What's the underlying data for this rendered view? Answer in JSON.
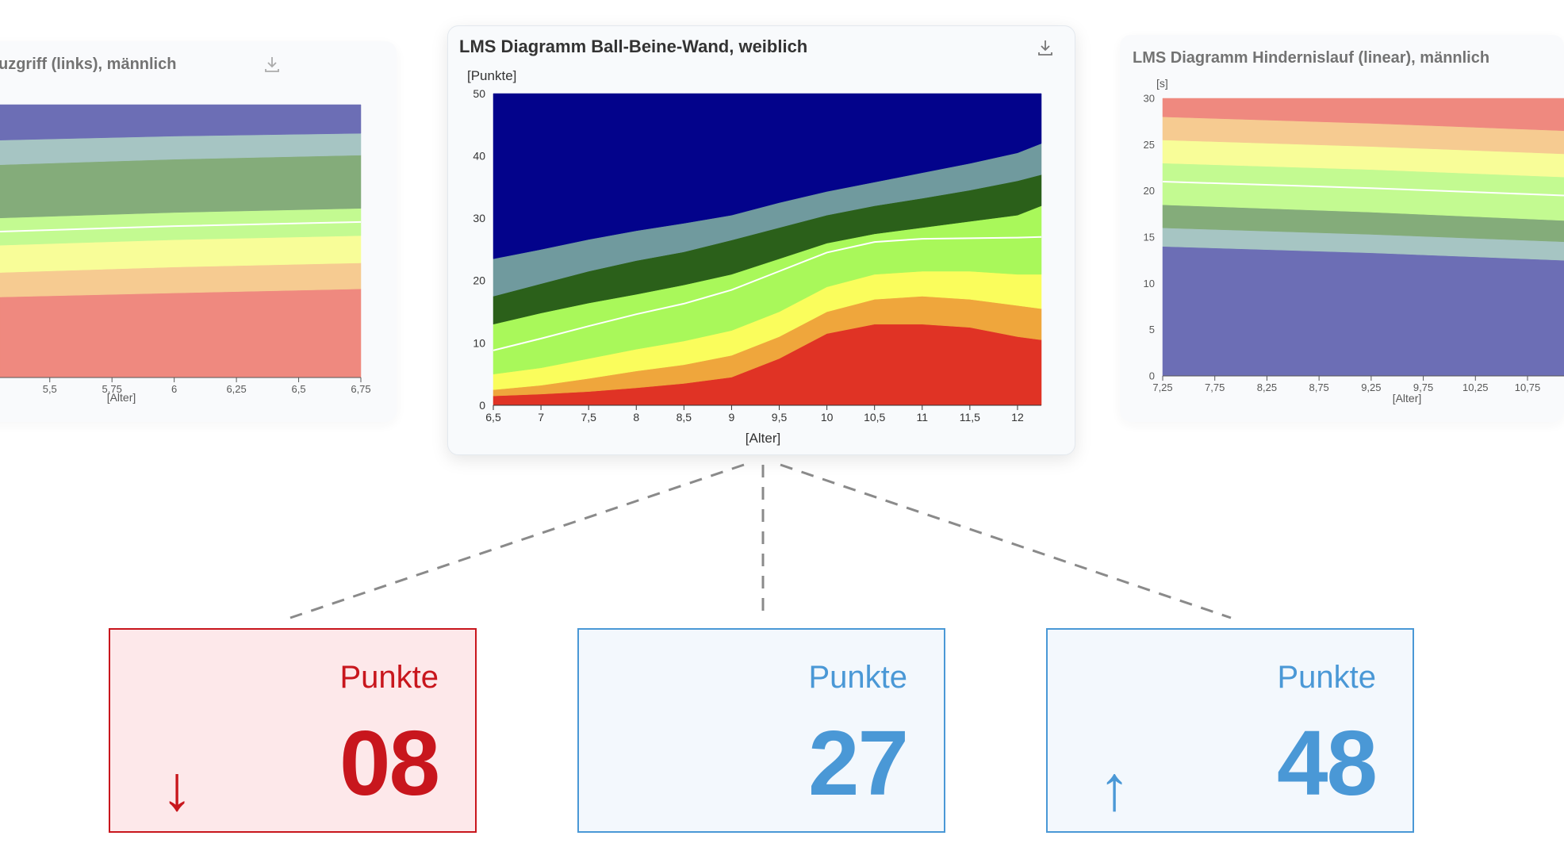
{
  "charts": {
    "left": {
      "title": "uzgriff (links), männlich"
    },
    "center": {
      "title": "LMS Diagramm Ball-Beine-Wand, weiblich"
    },
    "right": {
      "title": "LMS Diagramm Hindernislauf (linear), männlich"
    }
  },
  "kpis": [
    {
      "label": "Punkte",
      "value": "08",
      "arrow": "↓",
      "state": "below"
    },
    {
      "label": "Punkte",
      "value": "27",
      "arrow": "",
      "state": "normal"
    },
    {
      "label": "Punkte",
      "value": "48",
      "arrow": "↑",
      "state": "above"
    }
  ],
  "chart_data": [
    {
      "type": "area",
      "title": "uzgriff (links), männlich",
      "xlabel": "[Alter]",
      "ylabel": "",
      "xlim": [
        5.3,
        6.75
      ],
      "ylim": [
        0,
        1
      ],
      "x_ticks": [
        "5,5",
        "5,75",
        "6",
        "6,25",
        "6,5",
        "6,75"
      ],
      "x_tick_values": [
        5.5,
        5.75,
        6,
        6.25,
        6.5,
        6.75
      ],
      "x": [
        5.3,
        6.0,
        6.75
      ],
      "bands": [
        {
          "color": "#ec7063",
          "lower": [
            0,
            0,
            0
          ],
          "upper": [
            0.295,
            0.31,
            0.325
          ]
        },
        {
          "color": "#f5c07a",
          "lower": [
            0.295,
            0.31,
            0.325
          ],
          "upper": [
            0.385,
            0.405,
            0.42
          ]
        },
        {
          "color": "#f7fd82",
          "lower": [
            0.385,
            0.405,
            0.42
          ],
          "upper": [
            0.485,
            0.505,
            0.52
          ]
        },
        {
          "color": "#b6f97a",
          "lower": [
            0.485,
            0.505,
            0.52
          ],
          "upper": [
            0.585,
            0.605,
            0.62
          ]
        },
        {
          "color": "#6a9a5e",
          "lower": [
            0.585,
            0.605,
            0.62
          ],
          "upper": [
            0.78,
            0.8,
            0.815
          ]
        },
        {
          "color": "#93b9b6",
          "lower": [
            0.78,
            0.8,
            0.815
          ],
          "upper": [
            0.87,
            0.885,
            0.895
          ]
        },
        {
          "color": "#4d4fa6",
          "lower": [
            0.87,
            0.885,
            0.895
          ],
          "upper": [
            1,
            1,
            1
          ]
        }
      ],
      "median": [
        0.535,
        0.555,
        0.57
      ]
    },
    {
      "type": "area",
      "title": "LMS Diagramm Ball-Beine-Wand, weiblich",
      "xlabel": "[Alter]",
      "ylabel": "[Punkte]",
      "xlim": [
        6.5,
        12.25
      ],
      "ylim": [
        0,
        50
      ],
      "x_ticks": [
        "6,5",
        "7",
        "7,5",
        "8",
        "8,5",
        "9",
        "9,5",
        "10",
        "10,5",
        "11",
        "11,5",
        "12"
      ],
      "x_tick_values": [
        6.5,
        7,
        7.5,
        8,
        8.5,
        9,
        9.5,
        10,
        10.5,
        11,
        11.5,
        12
      ],
      "y_ticks": [
        0,
        10,
        20,
        30,
        40,
        50
      ],
      "x": [
        6.5,
        7,
        7.5,
        8,
        8.5,
        9,
        9.5,
        10,
        10.5,
        11,
        11.5,
        12,
        12.25
      ],
      "bands": [
        {
          "color": "#e03325",
          "lower": [
            0,
            0,
            0,
            0,
            0,
            0,
            0,
            0,
            0,
            0,
            0,
            0,
            0
          ],
          "upper": [
            1.5,
            1.8,
            2.2,
            2.8,
            3.5,
            4.5,
            7.5,
            11.5,
            13,
            13,
            12.5,
            11,
            10.5
          ]
        },
        {
          "color": "#efa63c",
          "lower": [
            1.5,
            1.8,
            2.2,
            2.8,
            3.5,
            4.5,
            7.5,
            11.5,
            13,
            13,
            12.5,
            11,
            10.5
          ],
          "upper": [
            2.5,
            3.2,
            4.3,
            5.5,
            6.5,
            8,
            11,
            15,
            17,
            17.5,
            17,
            16,
            15.5
          ]
        },
        {
          "color": "#fafd5c",
          "lower": [
            2.5,
            3.2,
            4.3,
            5.5,
            6.5,
            8,
            11,
            15,
            17,
            17.5,
            17,
            16,
            15.5
          ],
          "upper": [
            5,
            6,
            7.5,
            9,
            10.3,
            12,
            15,
            19,
            21,
            21.5,
            21.5,
            21,
            21
          ]
        },
        {
          "color": "#a9f85a",
          "lower": [
            5,
            6,
            7.5,
            9,
            10.3,
            12,
            15,
            19,
            21,
            21.5,
            21.5,
            21,
            21
          ],
          "upper": [
            13,
            14.8,
            16.4,
            17.8,
            19.3,
            21,
            23.5,
            26,
            27.5,
            28.5,
            29.5,
            30.5,
            32
          ]
        },
        {
          "color": "#2b601a",
          "lower": [
            13,
            14.8,
            16.4,
            17.8,
            19.3,
            21,
            23.5,
            26,
            27.5,
            28.5,
            29.5,
            30.5,
            32
          ],
          "upper": [
            17.5,
            19.5,
            21.5,
            23.2,
            24.6,
            26.5,
            28.5,
            30.5,
            32,
            33.2,
            34.5,
            36,
            37
          ]
        },
        {
          "color": "#709a9e",
          "lower": [
            17.5,
            19.5,
            21.5,
            23.2,
            24.6,
            26.5,
            28.5,
            30.5,
            32,
            33.2,
            34.5,
            36,
            37
          ],
          "upper": [
            23.5,
            25,
            26.6,
            28,
            29.2,
            30.5,
            32.5,
            34.3,
            35.8,
            37.3,
            38.8,
            40.5,
            42
          ]
        },
        {
          "color": "#03038b",
          "lower": [
            23.5,
            25,
            26.6,
            28,
            29.2,
            30.5,
            32.5,
            34.3,
            35.8,
            37.3,
            38.8,
            40.5,
            42
          ],
          "upper": [
            50,
            50,
            50,
            50,
            50,
            50,
            50,
            50,
            50,
            50,
            50,
            50,
            50
          ]
        }
      ],
      "median": [
        8.8,
        10.7,
        12.7,
        14.6,
        16.3,
        18.5,
        21.5,
        24.5,
        26.2,
        26.7,
        26.8,
        26.9,
        27
      ]
    },
    {
      "type": "area",
      "title": "LMS Diagramm Hindernislauf (linear), männlich",
      "xlabel": "[Alter]",
      "ylabel": "[s]",
      "xlim": [
        7.25,
        11.1
      ],
      "ylim": [
        0,
        30
      ],
      "x_ticks": [
        "7,25",
        "7,75",
        "8,25",
        "8,75",
        "9,25",
        "9,75",
        "10,25",
        "10,75"
      ],
      "x_tick_values": [
        7.25,
        7.75,
        8.25,
        8.75,
        9.25,
        9.75,
        10.25,
        10.75
      ],
      "y_ticks": [
        0,
        5,
        10,
        15,
        20,
        25,
        30
      ],
      "x": [
        7.25,
        9.25,
        11.1
      ],
      "bands": [
        {
          "color": "#4d4fa6",
          "lower": [
            0,
            0,
            0
          ],
          "upper": [
            14,
            13.3,
            12.5
          ]
        },
        {
          "color": "#93b9b6",
          "lower": [
            14,
            13.3,
            12.5
          ],
          "upper": [
            16,
            15.3,
            14.5
          ]
        },
        {
          "color": "#6a9a5e",
          "lower": [
            16,
            15.3,
            14.5
          ],
          "upper": [
            18.5,
            17.7,
            16.8
          ]
        },
        {
          "color": "#b6f97a",
          "lower": [
            18.5,
            17.7,
            16.8
          ],
          "upper": [
            23,
            22.3,
            21.5
          ]
        },
        {
          "color": "#f7fd82",
          "lower": [
            23,
            22.3,
            21.5
          ],
          "upper": [
            25.5,
            24.8,
            24
          ]
        },
        {
          "color": "#f5c07a",
          "lower": [
            25.5,
            24.8,
            24
          ],
          "upper": [
            28,
            27.3,
            26.5
          ]
        },
        {
          "color": "#ec7063",
          "lower": [
            28,
            27.3,
            26.5
          ],
          "upper": [
            30,
            30,
            30
          ]
        }
      ],
      "median": [
        21,
        20.3,
        19.5
      ]
    }
  ]
}
